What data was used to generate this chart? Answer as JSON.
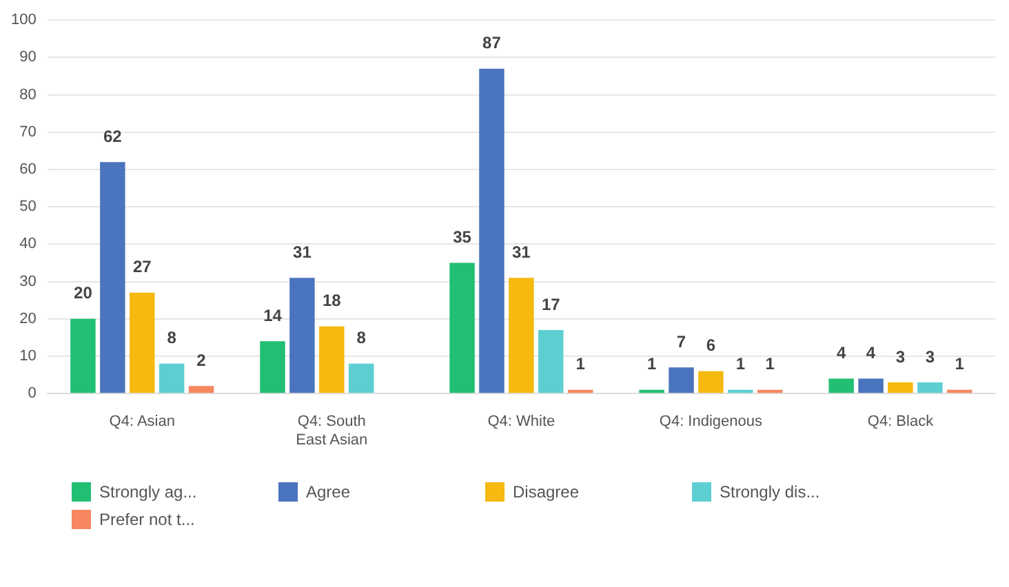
{
  "chart_data": {
    "type": "bar",
    "categories": [
      "Q4: Asian",
      "Q4: South East Asian",
      "Q4: White",
      "Q4: Indigenous",
      "Q4: Black"
    ],
    "series": [
      {
        "name": "Strongly ag...",
        "color": "#21bf73",
        "values": [
          20,
          14,
          35,
          1,
          4
        ]
      },
      {
        "name": "Agree",
        "color": "#4a74bd",
        "values": [
          62,
          31,
          87,
          7,
          4
        ]
      },
      {
        "name": "Disagree",
        "color": "#f5b90f",
        "values": [
          27,
          18,
          31,
          6,
          3
        ]
      },
      {
        "name": "Strongly dis...",
        "color": "#5dcfd3",
        "values": [
          8,
          8,
          17,
          1,
          3
        ]
      },
      {
        "name": "Prefer not t...",
        "color": "#f7875f",
        "values": [
          2,
          null,
          1,
          1,
          1
        ]
      }
    ],
    "ylim": [
      0,
      100
    ],
    "yticks": [
      0,
      10,
      20,
      30,
      40,
      50,
      60,
      70,
      80,
      90,
      100
    ],
    "grid": "y",
    "legend": "bottom",
    "data_labels": true
  }
}
